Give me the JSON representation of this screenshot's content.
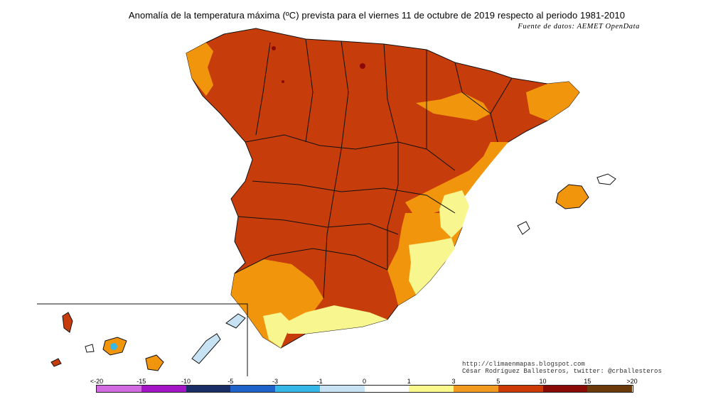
{
  "title": "Anomalía de la temperatura máxima (ºC) prevista para el viernes 11 de octubre de 2019 respecto al periodo 1981-2010",
  "source": "Fuente de datos: AEMET OpenData",
  "credits": {
    "url": "http://climaenmapas.blogspot.com",
    "author": "César Rodríguez Ballesteros, twitter: @crballesteros"
  },
  "legend": {
    "ticks": [
      "<-20",
      "-15",
      "-10",
      "-5",
      "-3",
      "-1",
      "0",
      "1",
      "3",
      "5",
      "10",
      "15",
      ">20"
    ],
    "colors": [
      "#d26be2",
      "#a315c6",
      "#1a2e66",
      "#1d63c9",
      "#35b8e8",
      "#c6e2f3",
      "#ffffff",
      "#fafa8c",
      "#f19a1f",
      "#ce3a06",
      "#8a0a06",
      "#6b3a0a"
    ]
  },
  "colors": {
    "anomaly_5_10": "#c63d0b",
    "anomaly_3_5": "#f0950c",
    "anomaly_1_3": "#f8f68f",
    "anomaly_10_15": "#8b0a08",
    "borders": "#111111"
  }
}
